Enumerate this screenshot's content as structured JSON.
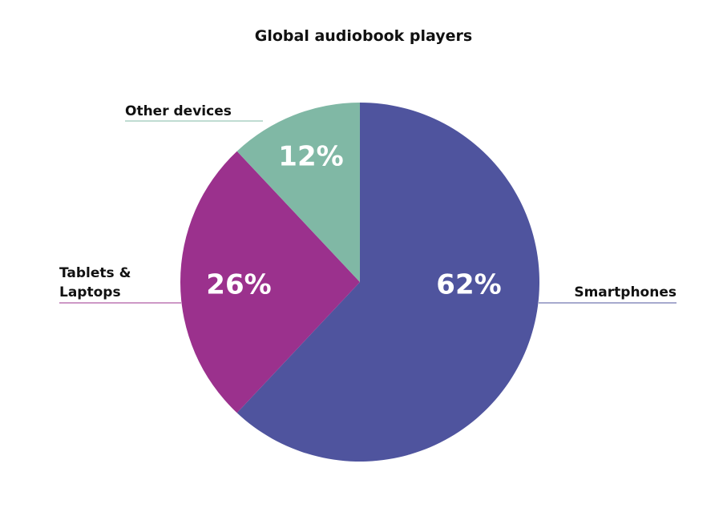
{
  "chart_data": {
    "type": "pie",
    "title": "Global audiobook players",
    "slices": [
      {
        "label": "Smartphones",
        "value": 62,
        "value_label": "62%",
        "color": "#4f549e"
      },
      {
        "label": "Tablets & Laptops",
        "label_lines": [
          "Tablets &",
          "Laptops"
        ],
        "value": 26,
        "value_label": "26%",
        "color": "#9b318d"
      },
      {
        "label": "Other devices",
        "value": 12,
        "value_label": "12%",
        "color": "#80b8a5"
      }
    ],
    "start": "top",
    "direction": "clockwise",
    "value_label_color": "#ffffff",
    "legend": "none"
  }
}
